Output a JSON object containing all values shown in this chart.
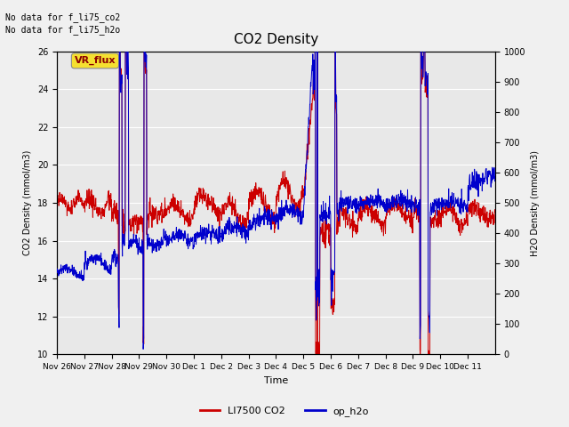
{
  "title": "CO2 Density",
  "xlabel": "Time",
  "ylabel_left": "CO2 Density (mmol/m3)",
  "ylabel_right": "H2O Density (mmol/m3)",
  "ylim_left": [
    10,
    26
  ],
  "ylim_right": [
    0,
    1000
  ],
  "yticks_left": [
    10,
    12,
    14,
    16,
    18,
    20,
    22,
    24,
    26
  ],
  "yticks_right": [
    0,
    100,
    200,
    300,
    400,
    500,
    600,
    700,
    800,
    900,
    1000
  ],
  "xtick_labels": [
    "Nov 26",
    "Nov 27",
    "Nov 28",
    "Nov 29",
    "Nov 30",
    "Dec 1",
    "Dec 2",
    "Dec 3",
    "Dec 4",
    "Dec 5",
    "Dec 6",
    "Dec 7",
    "Dec 8",
    "Dec 9",
    "Dec 10",
    "Dec 11"
  ],
  "no_data_text1": "No data for f_li75_co2",
  "no_data_text2": "No data for f_li75_h2o",
  "vr_flux_label": "VR_flux",
  "legend_entries": [
    "LI7500 CO2",
    "op_h2o"
  ],
  "legend_colors": [
    "#cc0000",
    "#0000cc"
  ],
  "co2_color": "#cc0000",
  "h2o_color": "#0000cc",
  "bg_color": "#e8e8e8",
  "grid_color": "#ffffff",
  "fig_bg": "#f0f0f0"
}
